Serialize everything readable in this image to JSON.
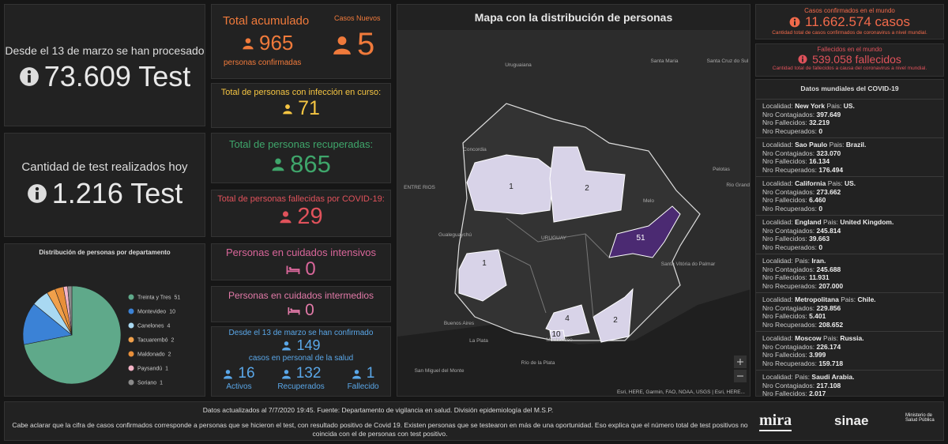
{
  "tests_total": {
    "text": "Desde el 13 de marzo se han procesado",
    "value": "73.609 Test"
  },
  "tests_today": {
    "text": "Cantidad de test realizados hoy",
    "value": "1.216 Test"
  },
  "pie": {
    "type": "pie",
    "title": "Distribución de personas por departamento",
    "categories": [
      "Treinta y Tres",
      "Montevideo",
      "Canelones",
      "Tacuarembó",
      "Maldonado",
      "Paysandú",
      "Soriano"
    ],
    "values": [
      51,
      10,
      4,
      2,
      2,
      1,
      1
    ],
    "colors": [
      "#5fa98a",
      "#3b82d6",
      "#a9d9f2",
      "#f0a04b",
      "#e88f3a",
      "#f3b3c6",
      "#8a8a8a"
    ]
  },
  "total": {
    "title": "Total acumulado",
    "value": "965",
    "subtitle": "personas confirmadas",
    "new_title": "Casos Nuevos",
    "new_value": "5"
  },
  "active": {
    "title": "Total de personas con infección en curso:",
    "value": "71"
  },
  "recovered": {
    "title": "Total de personas recuperadas:",
    "value": "865"
  },
  "deceased": {
    "title": "Total de personas fallecidas por COVID-19:",
    "value": "29"
  },
  "icu": {
    "title": "Personas en cuidados intensivos",
    "value": "0"
  },
  "intermediate": {
    "title": "Personas en cuidados intermedios",
    "value": "0"
  },
  "health_staff": {
    "title": "Desde el 13 de marzo se han confirmado",
    "value": "149",
    "subtitle": "casos en personal de la salud",
    "items": [
      {
        "value": "16",
        "label": "Activos"
      },
      {
        "value": "132",
        "label": "Recuperados"
      },
      {
        "value": "1",
        "label": "Fallecido"
      }
    ]
  },
  "map": {
    "title": "Mapa con la distribución de personas",
    "places": [
      "Uruguaiana",
      "Santa Maria",
      "Santa Cruz do Sul",
      "Concordia",
      "ENTRE RIOS",
      "Pelotas",
      "Rio Grande",
      "Melo",
      "Gualeguaychú",
      "URUGUAY",
      "Santa Vitória do Palmar",
      "Buenos Aires",
      "La Plata",
      "Montevideo",
      "Río de la Plata",
      "San Miguel del Monte"
    ],
    "regions": [
      "1",
      "2",
      "1",
      "51",
      "4",
      "2",
      "10"
    ],
    "attribution": "Esri, HERE, Garmin, FAO, NOAA, USGS | Esri, HERE..."
  },
  "world_cases": {
    "title": "Casos confirmados en el mundo",
    "value": "11.662.574 casos",
    "note": "Cantidad total de casos confirmados de coronavirus a nivel mundial."
  },
  "world_deaths": {
    "title": "Fallecidos en el mundo",
    "value": "539.058 fallecidos",
    "note": "Cantidad total de fallecidos a causa del coronavirus a nivel mundial."
  },
  "world_list": {
    "title": "Datos mundiales del COVID-19",
    "labels": {
      "locality": "Localidad:",
      "country": "Pais:",
      "cases": "Nro Contagiados:",
      "deaths": "Nro Fallecidos:",
      "recovered": "Nro Recuperados:"
    },
    "entries": [
      {
        "locality": "New York",
        "country": "US.",
        "cases": "397.649",
        "deaths": "32.219",
        "recovered": "0"
      },
      {
        "locality": "Sao Paulo",
        "country": "Brazil.",
        "cases": "323.070",
        "deaths": "16.134",
        "recovered": "176.494"
      },
      {
        "locality": "California",
        "country": "US.",
        "cases": "273.662",
        "deaths": "6.460",
        "recovered": "0"
      },
      {
        "locality": "England",
        "country": "United Kingdom.",
        "cases": "245.814",
        "deaths": "39.663",
        "recovered": "0"
      },
      {
        "country": "Iran.",
        "cases": "245.688",
        "deaths": "11.931",
        "recovered": "207.000"
      },
      {
        "locality": "Metropolitana",
        "country": "Chile.",
        "cases": "229.856",
        "deaths": "5.401",
        "recovered": "208.652"
      },
      {
        "locality": "Moscow",
        "country": "Russia.",
        "cases": "226.174",
        "deaths": "3.999",
        "recovered": "159.718"
      },
      {
        "country": "Saudi Arabia.",
        "cases": "217.108",
        "deaths": "2.017"
      }
    ]
  },
  "footer": {
    "updated": "Datos actualizados al 7/7/2020 19:45. Fuente: Departamento de vigilancia en salud. División epidemiología del M.S.P.",
    "note": "Cabe aclarar que la cifra de casos confirmados corresponde a personas que se hicieron el test, con resultado positivo de Covid 19. Existen personas que se testearon en más de una oportunidad. Eso explica que el número total de test positivos no coincida con el de personas con test positivo.",
    "logos": [
      "mira",
      "sinae",
      "Ministerio de Salud Pública"
    ]
  }
}
